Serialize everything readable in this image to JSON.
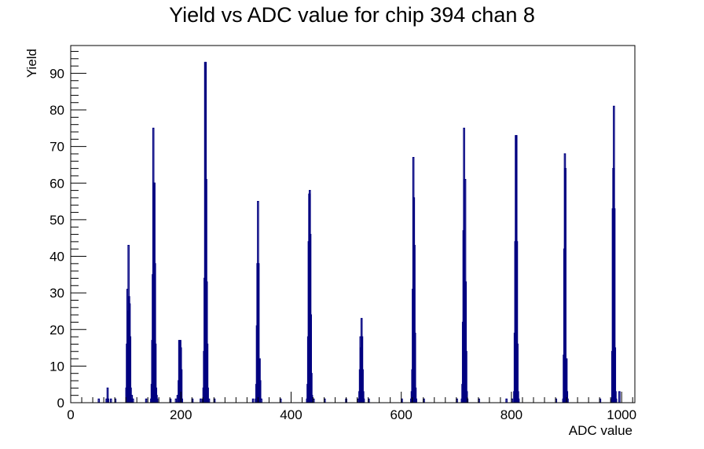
{
  "chart_data": {
    "type": "bar",
    "title": "Yield vs ADC value for chip 394 chan 8",
    "xlabel": "ADC value",
    "ylabel": "Yield",
    "xlim": [
      0,
      1024
    ],
    "ylim": [
      0,
      97.6
    ],
    "xticks": [
      0,
      200,
      400,
      600,
      800,
      1000
    ],
    "yticks": [
      0,
      10,
      20,
      30,
      40,
      50,
      60,
      70,
      80,
      90
    ],
    "grid": false,
    "legend": "none",
    "color": "#000080",
    "bin_width": 2,
    "series": [
      {
        "bins": [
          [
            50,
            1
          ],
          [
            64,
            1
          ],
          [
            66,
            4
          ],
          [
            67,
            1
          ],
          [
            72,
            1
          ],
          [
            80,
            1
          ],
          [
            100,
            4
          ],
          [
            101,
            16
          ],
          [
            102,
            31
          ],
          [
            103,
            25
          ],
          [
            104,
            43
          ],
          [
            105,
            29
          ],
          [
            106,
            27
          ],
          [
            107,
            18
          ],
          [
            108,
            4
          ],
          [
            109,
            1
          ],
          [
            110,
            2
          ],
          [
            112,
            1
          ],
          [
            136,
            1
          ],
          [
            145,
            1
          ],
          [
            146,
            5
          ],
          [
            147,
            17
          ],
          [
            148,
            35
          ],
          [
            149,
            75
          ],
          [
            150,
            60
          ],
          [
            151,
            60
          ],
          [
            152,
            38
          ],
          [
            153,
            16
          ],
          [
            154,
            4
          ],
          [
            155,
            2
          ],
          [
            156,
            1
          ],
          [
            180,
            1
          ],
          [
            190,
            1
          ],
          [
            193,
            2
          ],
          [
            195,
            6
          ],
          [
            196,
            17
          ],
          [
            197,
            17
          ],
          [
            198,
            17
          ],
          [
            199,
            15
          ],
          [
            200,
            9
          ],
          [
            201,
            1
          ],
          [
            220,
            1
          ],
          [
            235,
            1
          ],
          [
            239,
            1
          ],
          [
            240,
            4
          ],
          [
            241,
            14
          ],
          [
            242,
            34
          ],
          [
            243,
            93
          ],
          [
            244,
            93
          ],
          [
            245,
            61
          ],
          [
            246,
            33
          ],
          [
            247,
            16
          ],
          [
            248,
            4
          ],
          [
            250,
            1
          ],
          [
            260,
            1
          ],
          [
            330,
            1
          ],
          [
            335,
            1
          ],
          [
            336,
            5
          ],
          [
            337,
            21
          ],
          [
            338,
            38
          ],
          [
            339,
            55
          ],
          [
            340,
            38
          ],
          [
            341,
            12
          ],
          [
            342,
            12
          ],
          [
            343,
            6
          ],
          [
            345,
            1
          ],
          [
            380,
            1
          ],
          [
            428,
            1
          ],
          [
            429,
            5
          ],
          [
            430,
            18
          ],
          [
            431,
            44
          ],
          [
            432,
            57
          ],
          [
            433,
            58
          ],
          [
            434,
            46
          ],
          [
            435,
            24
          ],
          [
            436,
            8
          ],
          [
            437,
            2
          ],
          [
            440,
            1
          ],
          [
            460,
            1
          ],
          [
            499,
            1
          ],
          [
            520,
            1
          ],
          [
            523,
            3
          ],
          [
            524,
            9
          ],
          [
            525,
            18
          ],
          [
            526,
            15
          ],
          [
            527,
            23
          ],
          [
            528,
            18
          ],
          [
            529,
            9
          ],
          [
            530,
            3
          ],
          [
            531,
            1
          ],
          [
            540,
            1
          ],
          [
            600,
            1
          ],
          [
            617,
            1
          ],
          [
            618,
            3
          ],
          [
            619,
            9
          ],
          [
            620,
            31
          ],
          [
            621,
            67
          ],
          [
            622,
            56
          ],
          [
            623,
            43
          ],
          [
            624,
            19
          ],
          [
            625,
            4
          ],
          [
            626,
            1
          ],
          [
            640,
            1
          ],
          [
            700,
            1
          ],
          [
            709,
            1
          ],
          [
            710,
            5
          ],
          [
            711,
            22
          ],
          [
            712,
            47
          ],
          [
            713,
            75
          ],
          [
            714,
            30
          ],
          [
            715,
            61
          ],
          [
            716,
            33
          ],
          [
            717,
            14
          ],
          [
            718,
            3
          ],
          [
            719,
            1
          ],
          [
            740,
            1
          ],
          [
            790,
            1
          ],
          [
            800,
            1
          ],
          [
            804,
            3
          ],
          [
            805,
            19
          ],
          [
            806,
            44
          ],
          [
            807,
            73
          ],
          [
            808,
            73
          ],
          [
            809,
            44
          ],
          [
            810,
            16
          ],
          [
            811,
            3
          ],
          [
            812,
            1
          ],
          [
            880,
            1
          ],
          [
            893,
            1
          ],
          [
            894,
            13
          ],
          [
            895,
            42
          ],
          [
            896,
            68
          ],
          [
            897,
            64
          ],
          [
            898,
            12
          ],
          [
            899,
            12
          ],
          [
            900,
            3
          ],
          [
            901,
            1
          ],
          [
            960,
            1
          ],
          [
            981,
            1
          ],
          [
            982,
            14
          ],
          [
            983,
            53
          ],
          [
            984,
            64
          ],
          [
            985,
            81
          ],
          [
            986,
            53
          ],
          [
            987,
            15
          ],
          [
            988,
            3
          ],
          [
            989,
            1
          ],
          [
            995,
            3
          ]
        ]
      }
    ]
  }
}
